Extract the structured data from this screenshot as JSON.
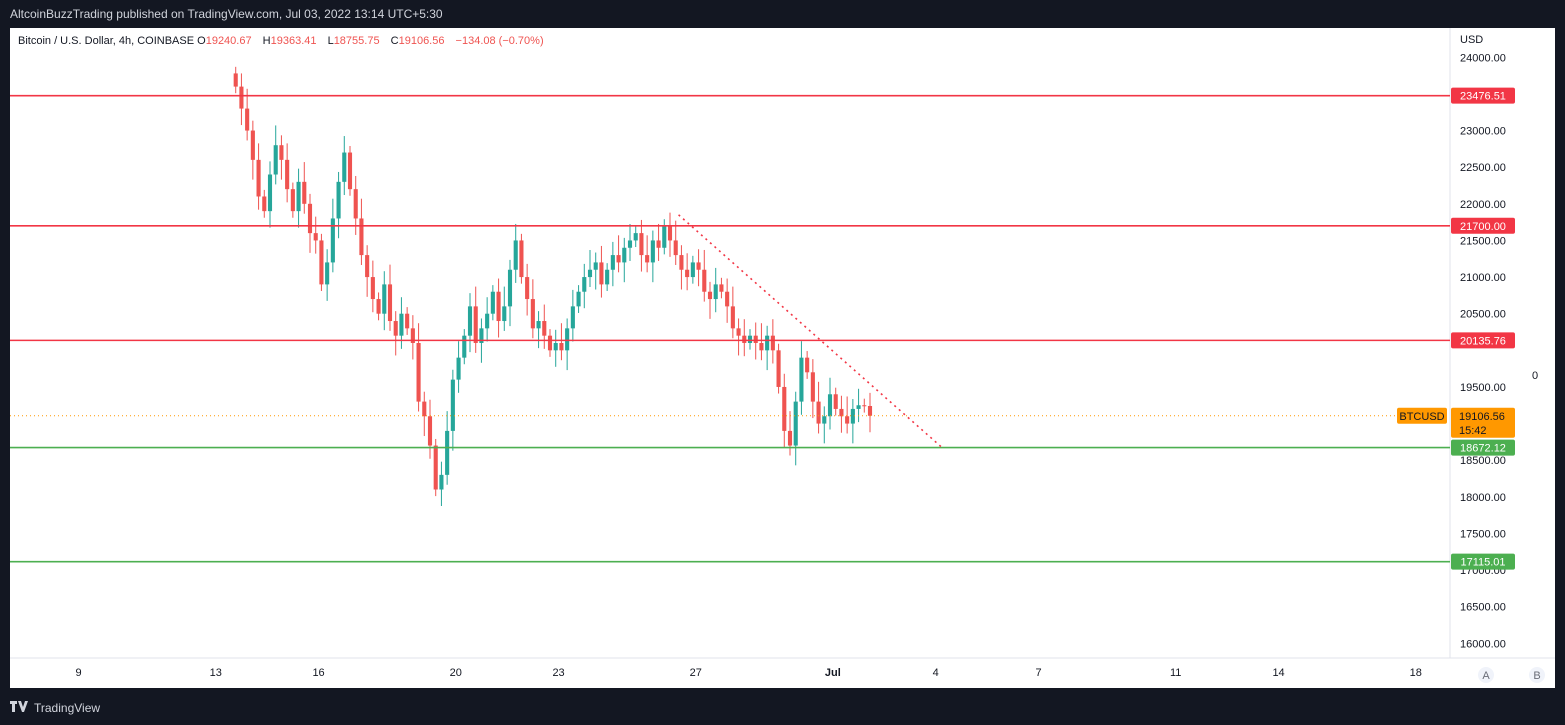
{
  "header": {
    "publisher": "AltcoinBuzzTrading published on TradingView.com, Jul 03, 2022 13:14 UTC+5:30"
  },
  "legend": {
    "symbol": "Bitcoin / U.S. Dollar, 4h, COINBASE",
    "o_label": "O",
    "o": "19240.67",
    "h_label": "H",
    "h": "19363.41",
    "l_label": "L",
    "l": "18755.75",
    "c_label": "C",
    "c": "19106.56",
    "change": "−134.08 (−0.70%)"
  },
  "axis": {
    "currency": "USD",
    "zero_marker": "0",
    "auto_button": "A",
    "b_button": "B"
  },
  "footer": {
    "brand": "TradingView",
    "logo_icon": "tradingview-logo-icon"
  },
  "colors": {
    "up": "#26a69a",
    "down": "#ef5350",
    "resistance": "#f23645",
    "support": "#4caf50",
    "last_price": "#ff9800"
  },
  "chart_data": {
    "type": "candlestick",
    "symbol": "BTCUSD",
    "interval": "4h",
    "ylim": [
      15800,
      24400
    ],
    "xlim": [
      "2022-06-07",
      "2022-07-19"
    ],
    "y_ticks": [
      "24000.00",
      "23000.00",
      "22500.00",
      "22000.00",
      "21500.00",
      "21000.00",
      "20500.00",
      "19500.00",
      "18500.00",
      "18000.00",
      "17500.00",
      "17000.00",
      "16500.00",
      "16000.00"
    ],
    "x_ticks": [
      {
        "date": "2022-06-09",
        "label": "9"
      },
      {
        "date": "2022-06-13",
        "label": "13"
      },
      {
        "date": "2022-06-16",
        "label": "16"
      },
      {
        "date": "2022-06-20",
        "label": "20"
      },
      {
        "date": "2022-06-23",
        "label": "23"
      },
      {
        "date": "2022-06-27",
        "label": "27"
      },
      {
        "date": "2022-07-01",
        "label": "Jul"
      },
      {
        "date": "2022-07-04",
        "label": "4"
      },
      {
        "date": "2022-07-07",
        "label": "7"
      },
      {
        "date": "2022-07-11",
        "label": "11"
      },
      {
        "date": "2022-07-14",
        "label": "14"
      },
      {
        "date": "2022-07-18",
        "label": "18"
      }
    ],
    "first_candle": "2022-06-13 12:00",
    "candle_hours": 4,
    "closes": [
      23600,
      23300,
      23000,
      22600,
      22100,
      21900,
      22400,
      22800,
      22600,
      22200,
      21900,
      22300,
      22000,
      21600,
      21500,
      20900,
      21200,
      21800,
      22300,
      22700,
      22200,
      21800,
      21300,
      21000,
      20700,
      20500,
      20900,
      20400,
      20200,
      20500,
      20300,
      20100,
      19300,
      19100,
      18700,
      18100,
      18300,
      18900,
      19600,
      19900,
      20200,
      20600,
      20100,
      20300,
      20500,
      20800,
      20400,
      20600,
      21100,
      21500,
      21000,
      20700,
      20300,
      20400,
      20200,
      20000,
      20100,
      20000,
      20300,
      20600,
      20800,
      21000,
      21100,
      21200,
      20900,
      21100,
      21300,
      21200,
      21400,
      21500,
      21600,
      21300,
      21200,
      21500,
      21400,
      21700,
      21500,
      21300,
      21100,
      21000,
      21200,
      21100,
      20800,
      20700,
      20900,
      20800,
      20600,
      20300,
      20200,
      20100,
      20200,
      20100,
      20000,
      20200,
      20000,
      19500,
      18900,
      18700,
      19300,
      19900,
      19700,
      19300,
      19000,
      19100,
      19400,
      19200,
      19100,
      19000,
      19200,
      19250,
      19240,
      19106.56
    ],
    "horizontal_levels": [
      {
        "price": 23476.51,
        "label": "23476.51",
        "kind": "resistance"
      },
      {
        "price": 21700.0,
        "label": "21700.00",
        "kind": "resistance"
      },
      {
        "price": 20135.76,
        "label": "20135.76",
        "kind": "resistance"
      },
      {
        "price": 18672.12,
        "label": "18672.12",
        "kind": "support"
      },
      {
        "price": 17115.01,
        "label": "17115.01",
        "kind": "support"
      }
    ],
    "trendline": {
      "from": {
        "date": "2022-06-26 12:00",
        "price": 21850
      },
      "to": {
        "date": "2022-07-04 04:00",
        "price": 18680
      },
      "style": "dotted"
    },
    "last_price": {
      "price": 19106.56,
      "label": "19106.56",
      "symbol_label": "BTCUSD",
      "countdown": "15:42"
    }
  }
}
